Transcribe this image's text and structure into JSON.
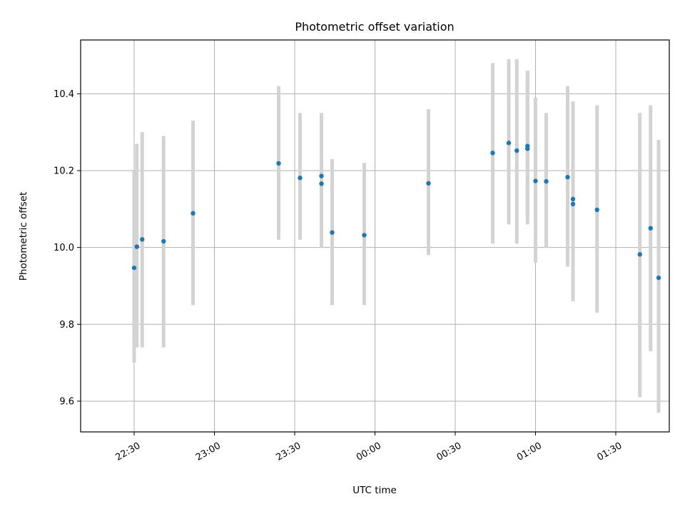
{
  "chart_data": {
    "type": "scatter",
    "title": "Photometric offset variation",
    "xlabel": "UTC time",
    "ylabel": "Photometric offset",
    "x_axis": "time",
    "xlim": [
      "22:10",
      "01:50"
    ],
    "ylim": [
      9.52,
      10.54
    ],
    "x_ticks": [
      "22:30",
      "23:00",
      "23:30",
      "00:00",
      "00:30",
      "01:00",
      "01:30"
    ],
    "y_ticks": [
      9.6,
      9.8,
      10.0,
      10.2,
      10.4
    ],
    "y_tick_labels": [
      "9.6",
      "9.8",
      "10.0",
      "10.2",
      "10.4"
    ],
    "grid": true,
    "colors": {
      "points": "#1f77b4",
      "error_bars": "#d3d3d3",
      "grid": "#b0b0b0"
    },
    "series": [
      {
        "x": [
          "22:30",
          "22:31",
          "22:33",
          "22:41",
          "22:52",
          "23:24",
          "23:32",
          "23:40",
          "23:40",
          "23:44",
          "23:56",
          "00:20",
          "00:44",
          "00:50",
          "00:53",
          "00:57",
          "00:57",
          "01:00",
          "01:04",
          "01:12",
          "01:14",
          "01:14",
          "01:23",
          "01:39",
          "01:43",
          "01:46"
        ],
        "y": [
          9.947,
          10.002,
          10.021,
          10.016,
          10.089,
          10.219,
          10.181,
          10.166,
          10.186,
          10.039,
          10.032,
          10.167,
          10.246,
          10.272,
          10.252,
          10.257,
          10.264,
          10.173,
          10.172,
          10.183,
          10.113,
          10.126,
          10.098,
          9.982,
          10.05,
          9.921
        ],
        "yerr_low": [
          9.7,
          9.74,
          9.74,
          9.74,
          9.85,
          10.02,
          10.02,
          10.0,
          10.02,
          9.85,
          9.85,
          9.98,
          10.01,
          10.06,
          10.01,
          10.06,
          10.08,
          9.96,
          10.0,
          9.95,
          9.86,
          9.87,
          9.83,
          9.61,
          9.73,
          9.57
        ],
        "yerr_high": [
          10.2,
          10.27,
          10.3,
          10.29,
          10.33,
          10.42,
          10.35,
          10.33,
          10.35,
          10.23,
          10.22,
          10.36,
          10.48,
          10.49,
          10.49,
          10.45,
          10.46,
          10.39,
          10.35,
          10.42,
          10.37,
          10.38,
          10.37,
          10.35,
          10.37,
          10.28
        ]
      }
    ]
  }
}
